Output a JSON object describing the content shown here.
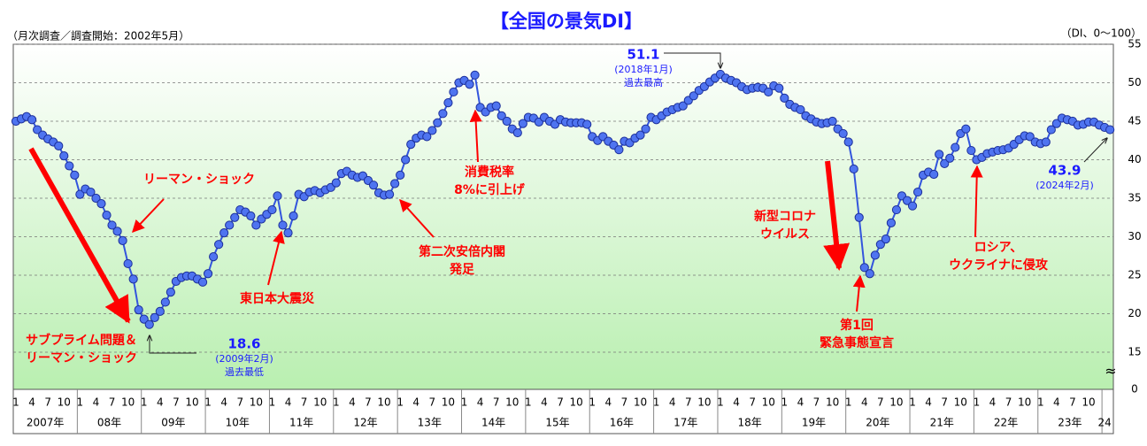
{
  "chart_data": {
    "type": "line",
    "title": "【全国の景気DI】",
    "subtitle": "（月次調査／調査開始：2002年5月）",
    "unit_note": "（DI、0～100）",
    "color": "#3355dd",
    "categories": [
      "1",
      null,
      null,
      "4",
      null,
      null,
      "7",
      null,
      null,
      "10",
      null,
      null,
      "1",
      null,
      null,
      "4",
      null,
      null,
      "7",
      null,
      null,
      "10",
      null,
      null,
      "1",
      null,
      null,
      "4",
      null,
      null,
      "7",
      null,
      null,
      "10",
      null,
      null,
      "1",
      null,
      null,
      "4",
      null,
      null,
      "7",
      null,
      null,
      "10",
      null,
      null,
      "1",
      null,
      null,
      "4",
      null,
      null,
      "7",
      null,
      null,
      "10",
      null,
      null,
      "1",
      null,
      null,
      "4",
      null,
      null,
      "7",
      null,
      null,
      "10",
      null,
      null,
      "1",
      null,
      null,
      "4",
      null,
      null,
      "7",
      null,
      null,
      "10",
      null,
      null,
      "1",
      null,
      null,
      "4",
      null,
      null,
      "7",
      null,
      null,
      "10",
      null,
      null,
      "1",
      null,
      null,
      "4",
      null,
      null,
      "7",
      null,
      null,
      "10",
      null,
      null,
      "1",
      null,
      null,
      "4",
      null,
      null,
      "7",
      null,
      null,
      "10",
      null,
      null,
      "1",
      null,
      null,
      "4",
      null,
      null,
      "7",
      null,
      null,
      "10",
      null,
      null,
      "1",
      null,
      null,
      "4",
      null,
      null,
      "7",
      null,
      null,
      "10",
      null,
      null,
      "1",
      null,
      null,
      "4",
      null,
      null,
      "7",
      null,
      null,
      "10",
      null,
      null,
      "1",
      null,
      null,
      "4",
      null,
      null,
      "7",
      null,
      null,
      "10",
      null,
      null,
      "1",
      null,
      null,
      "4",
      null,
      null,
      "7",
      null,
      null,
      "10",
      null,
      null,
      "1",
      null,
      null,
      "4",
      null,
      null,
      "7",
      null,
      null,
      "10",
      null,
      null,
      "1",
      null,
      null,
      "4",
      null,
      null,
      "7",
      null,
      null,
      "10",
      null,
      null,
      null,
      null
    ],
    "years": [
      "2007年",
      "08年",
      "09年",
      "10年",
      "11年",
      "12年",
      "13年",
      "14年",
      "15年",
      "16年",
      "17年",
      "18年",
      "19年",
      "20年",
      "21年",
      "22年",
      "23年",
      "24"
    ],
    "values": [
      45.0,
      45.3,
      45.6,
      45.2,
      43.9,
      43.2,
      42.7,
      42.3,
      41.8,
      40.5,
      39.2,
      38.0,
      35.5,
      36.2,
      35.8,
      35.0,
      34.3,
      32.8,
      31.5,
      30.7,
      29.5,
      26.5,
      24.5,
      20.5,
      19.3,
      18.6,
      19.5,
      20.3,
      21.5,
      22.8,
      24.2,
      24.7,
      24.9,
      24.9,
      24.5,
      24.1,
      25.2,
      27.4,
      29.0,
      30.5,
      31.5,
      32.5,
      33.5,
      33.2,
      32.7,
      31.5,
      32.3,
      32.9,
      33.5,
      35.3,
      31.5,
      30.5,
      32.7,
      35.5,
      35.2,
      35.8,
      36.0,
      35.7,
      36.1,
      36.4,
      37.0,
      38.2,
      38.5,
      38.0,
      37.7,
      37.9,
      37.3,
      36.7,
      35.7,
      35.4,
      35.5,
      36.9,
      38.0,
      40.0,
      42.0,
      42.8,
      43.2,
      43.0,
      43.8,
      44.8,
      46.0,
      47.4,
      48.8,
      50.0,
      50.3,
      49.8,
      51.0,
      46.8,
      46.2,
      46.8,
      47.0,
      45.7,
      45.0,
      44.0,
      43.5,
      44.7,
      45.5,
      45.4,
      44.9,
      45.5,
      45.0,
      44.6,
      45.2,
      44.9,
      44.8,
      44.8,
      44.8,
      44.6,
      43.0,
      42.5,
      43.0,
      42.4,
      41.9,
      41.3,
      42.4,
      42.2,
      42.8,
      43.2,
      44.0,
      45.5,
      45.2,
      45.7,
      46.2,
      46.5,
      46.8,
      47.0,
      47.7,
      48.3,
      49.0,
      49.5,
      50.1,
      50.6,
      51.1,
      50.6,
      50.3,
      50.0,
      49.5,
      49.1,
      49.3,
      49.4,
      49.3,
      48.8,
      49.6,
      49.3,
      48.0,
      47.2,
      46.8,
      46.5,
      45.7,
      45.3,
      44.9,
      44.7,
      44.8,
      45.0,
      44.0,
      43.4,
      42.3,
      38.8,
      32.5,
      26.0,
      25.2,
      27.6,
      29.0,
      29.7,
      31.8,
      33.5,
      35.3,
      34.7,
      34.0,
      35.8,
      38.0,
      38.4,
      38.1,
      40.7,
      39.5,
      40.2,
      41.6,
      43.4,
      44.0,
      41.2,
      40.0,
      40.3,
      40.8,
      41.0,
      41.2,
      41.3,
      41.5,
      42.0,
      42.6,
      43.1,
      43.0,
      42.3,
      42.1,
      42.3,
      43.9,
      44.7,
      45.4,
      45.2,
      45.0,
      44.5,
      44.6,
      44.9,
      44.9,
      44.5,
      44.2,
      43.9
    ],
    "ylim": [
      0,
      55
    ],
    "axis_break": 15,
    "yticks": [
      0,
      15,
      20,
      25,
      30,
      35,
      40,
      45,
      50,
      55
    ],
    "grid": true,
    "annotations": [
      [
        "リーマン・ショック"
      ],
      [
        "サブプライム問題＆",
        "リーマン・ショック"
      ],
      [
        "東日本大震災"
      ],
      [
        "第二次安倍内閣",
        "発足"
      ],
      [
        "消費税率",
        "8%に引上げ"
      ],
      [
        "新型コロナ",
        "ウイルス"
      ],
      [
        "第1回",
        "緊急事態宣言"
      ],
      [
        "ロシア、",
        "ウクライナに侵攻"
      ]
    ],
    "callouts": [
      [
        "(2009年2月)",
        "過去最低"
      ],
      [
        "(2018年1月)",
        "過去最高"
      ],
      [
        "(2024年2月)"
      ]
    ]
  }
}
